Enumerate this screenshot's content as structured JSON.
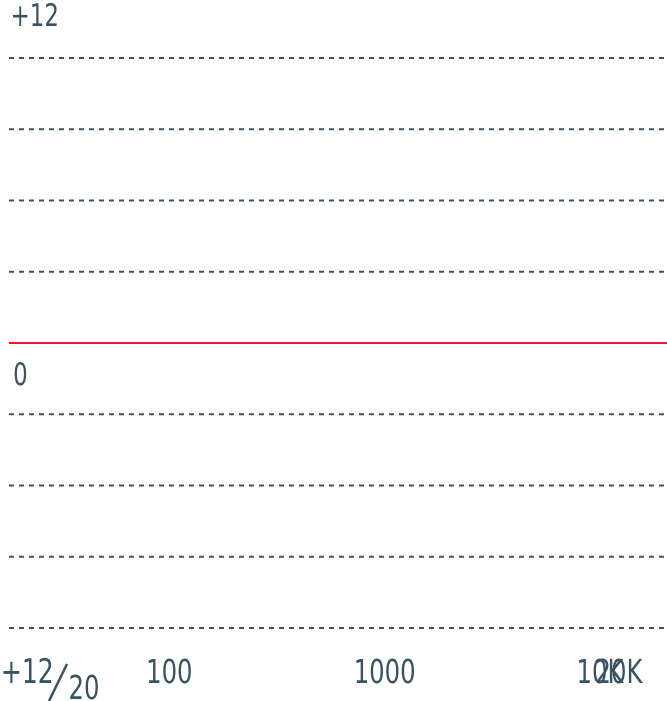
{
  "chart_data": {
    "type": "line",
    "title": "",
    "xlabel": "",
    "ylabel": "",
    "x_scale": "log",
    "xlim": [
      20,
      20000
    ],
    "ylim": [
      -12,
      12
    ],
    "y_gridlines": [
      12,
      9,
      6,
      3,
      -3,
      -6,
      -9,
      -12
    ],
    "grid": true,
    "y_tick_labels": {
      "top": "+12",
      "middle": "0",
      "bottom": "+12"
    },
    "x_tick_labels": [
      {
        "value": 20,
        "label": "20"
      },
      {
        "value": 100,
        "label": "100"
      },
      {
        "value": 1000,
        "label": "1000"
      },
      {
        "value": 10000,
        "label": "10K"
      },
      {
        "value": 20000,
        "label": "20K"
      }
    ],
    "series": [
      {
        "x": [
          20,
          20000
        ],
        "y": [
          0,
          0
        ],
        "color": "#ee1c1c"
      }
    ],
    "colors": {
      "text": "#3b5260",
      "grid": "#3b5260",
      "curve": "#ee1c1c"
    }
  }
}
